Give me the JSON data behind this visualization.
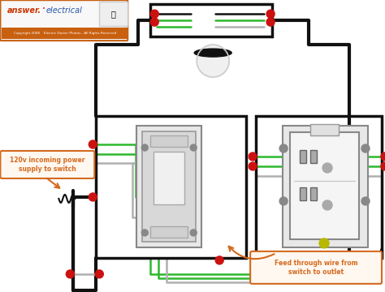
{
  "bg_color": "#ffffff",
  "black_wire": "#111111",
  "green_wire": "#2db82d",
  "gray_wire": "#b0b0b0",
  "red_connector": "#cc1111",
  "orange_label": "#d4691e",
  "header_bg": "#f5f5f5",
  "header_border": "#c86010",
  "copyright_text": "Copyright 2008    Electric Doctor Photos - All Rights Reserved",
  "label1": "120v incoming power\nsupply to switch",
  "label2": "Feed through wire from\nswitch to outlet"
}
